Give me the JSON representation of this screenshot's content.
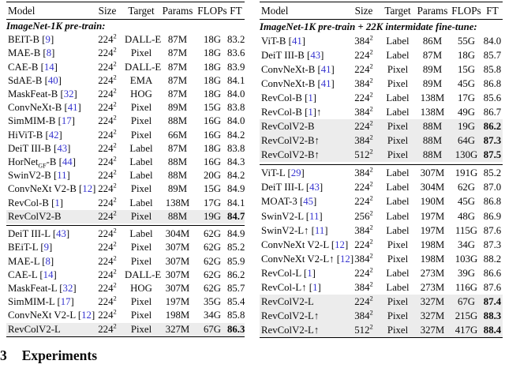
{
  "colors": {
    "citation_blue": "#3533cf",
    "highlight_gray": "#ececec",
    "text": "#0a0a0a"
  },
  "heading": {
    "number": "3",
    "title": "Experiments"
  },
  "tables": {
    "left": {
      "columns": [
        "Model",
        "Size",
        "Target",
        "Params",
        "FLOPs",
        "FT"
      ],
      "section": "ImageNet-1K pre-train:",
      "blocks": [
        {
          "rows": [
            {
              "m": "BEIT-B",
              "c": "9",
              "size": "224",
              "sup": "2",
              "target": "DALL-E",
              "params": "87M",
              "flops": "18G",
              "ft": "83.2"
            },
            {
              "m": "MAE-B",
              "c": "8",
              "size": "224",
              "sup": "2",
              "target": "Pixel",
              "params": "87M",
              "flops": "18G",
              "ft": "83.6"
            },
            {
              "m": "CAE-B",
              "c": "14",
              "size": "224",
              "sup": "2",
              "target": "DALL-E",
              "params": "87M",
              "flops": "18G",
              "ft": "83.9"
            },
            {
              "m": "SdAE-B",
              "c": "40",
              "size": "224",
              "sup": "2",
              "target": "EMA",
              "params": "87M",
              "flops": "18G",
              "ft": "84.1"
            },
            {
              "m": "MaskFeat-B",
              "c": "32",
              "size": "224",
              "sup": "2",
              "target": "HOG",
              "params": "87M",
              "flops": "18G",
              "ft": "84.0"
            },
            {
              "m": "ConvNeXt-B",
              "c": "41",
              "size": "224",
              "sup": "2",
              "target": "Pixel",
              "params": "89M",
              "flops": "15G",
              "ft": "83.8"
            },
            {
              "m": "SimMIM-B",
              "c": "17",
              "size": "224",
              "sup": "2",
              "target": "Pixel",
              "params": "88M",
              "flops": "16G",
              "ft": "84.0"
            },
            {
              "m": "HiViT-B",
              "c": "42",
              "size": "224",
              "sup": "2",
              "target": "Pixel",
              "params": "66M",
              "flops": "16G",
              "ft": "84.2"
            },
            {
              "m": "DeiT III-B",
              "c": "43",
              "size": "224",
              "sup": "2",
              "target": "Label",
              "params": "87M",
              "flops": "18G",
              "ft": "83.8"
            },
            {
              "m": "HorNet",
              "sub": "GF",
              "m2": "-B",
              "c": "44",
              "size": "224",
              "sup": "2",
              "target": "Label",
              "params": "88M",
              "flops": "16G",
              "ft": "84.3"
            },
            {
              "m": "SwinV2-B",
              "c": "11",
              "size": "224",
              "sup": "2",
              "target": "Label",
              "params": "88M",
              "flops": "20G",
              "ft": "84.2"
            },
            {
              "m": "ConvNeXt V2-B",
              "c": "12",
              "size": "224",
              "sup": "2",
              "target": "Pixel",
              "params": "89M",
              "flops": "15G",
              "ft": "84.9"
            },
            {
              "m": "RevCol-B",
              "c": "1",
              "size": "224",
              "sup": "2",
              "target": "Label",
              "params": "138M",
              "flops": "17G",
              "ft": "84.1"
            },
            {
              "m": "RevColV2-B",
              "size": "224",
              "sup": "2",
              "target": "Pixel",
              "params": "88M",
              "flops": "19G",
              "ft": "84.7",
              "hl": true,
              "bold": true
            }
          ]
        },
        {
          "rows": [
            {
              "m": "DeiT III-L",
              "c": "43",
              "size": "224",
              "sup": "2",
              "target": "Label",
              "params": "304M",
              "flops": "62G",
              "ft": "84.9"
            },
            {
              "m": "BEiT-L",
              "c": "9",
              "size": "224",
              "sup": "2",
              "target": "Pixel",
              "params": "307M",
              "flops": "62G",
              "ft": "85.2"
            },
            {
              "m": "MAE-L",
              "c": "8",
              "size": "224",
              "sup": "2",
              "target": "Pixel",
              "params": "307M",
              "flops": "62G",
              "ft": "85.9"
            },
            {
              "m": "CAE-L",
              "c": "14",
              "size": "224",
              "sup": "2",
              "target": "DALL-E",
              "params": "307M",
              "flops": "62G",
              "ft": "86.2"
            },
            {
              "m": "MaskFeat-L",
              "c": "32",
              "size": "224",
              "sup": "2",
              "target": "HOG",
              "params": "307M",
              "flops": "62G",
              "ft": "85.7"
            },
            {
              "m": "SimMIM-L",
              "c": "17",
              "size": "224",
              "sup": "2",
              "target": "Pixel",
              "params": "197M",
              "flops": "35G",
              "ft": "85.4"
            },
            {
              "m": "ConvNeXt V2-L",
              "c": "12",
              "size": "224",
              "sup": "2",
              "target": "Pixel",
              "params": "198M",
              "flops": "34G",
              "ft": "85.8"
            },
            {
              "m": "RevColV2-L",
              "size": "224",
              "sup": "2",
              "target": "Pixel",
              "params": "327M",
              "flops": "67G",
              "ft": "86.3",
              "hl": true,
              "bold": true
            }
          ]
        }
      ]
    },
    "right": {
      "columns": [
        "Model",
        "Size",
        "Target",
        "Params",
        "FLOPs",
        "FT"
      ],
      "section": "ImageNet-1K pre-train + 22K intermidate fine-tune:",
      "blocks": [
        {
          "rows": [
            {
              "m": "ViT-B",
              "c": "41",
              "size": "384",
              "sup": "2",
              "target": "Label",
              "params": "86M",
              "flops": "55G",
              "ft": "84.0"
            },
            {
              "m": "DeiT III-B",
              "c": "43",
              "size": "224",
              "sup": "2",
              "target": "Label",
              "params": "87M",
              "flops": "18G",
              "ft": "85.7"
            },
            {
              "m": "ConvNeXt-B",
              "c": "41",
              "size": "224",
              "sup": "2",
              "target": "Pixel",
              "params": "89M",
              "flops": "15G",
              "ft": "85.8"
            },
            {
              "m": "ConvNeXt-B",
              "c": "41",
              "size": "384",
              "sup": "2",
              "target": "Pixel",
              "params": "89M",
              "flops": "45G",
              "ft": "86.8"
            },
            {
              "m": "RevCol-B",
              "c": "1",
              "size": "224",
              "sup": "2",
              "target": "Label",
              "params": "138M",
              "flops": "17G",
              "ft": "85.6"
            },
            {
              "m": "RevCol-B",
              "c": "1",
              "post": "↑",
              "size": "384",
              "sup": "2",
              "target": "Label",
              "params": "138M",
              "flops": "49G",
              "ft": "86.7"
            },
            {
              "m": "RevColV2-B",
              "size": "224",
              "sup": "2",
              "target": "Pixel",
              "params": "88M",
              "flops": "19G",
              "ft": "86.2",
              "hl": true,
              "bold": true
            },
            {
              "m": "RevColV2-B↑",
              "size": "384",
              "sup": "2",
              "target": "Pixel",
              "params": "88M",
              "flops": "64G",
              "ft": "87.3",
              "hl": true,
              "bold": true
            },
            {
              "m": "RevColV2-B↑",
              "size": "512",
              "sup": "2",
              "target": "Pixel",
              "params": "88M",
              "flops": "130G",
              "ft": "87.5",
              "hl": true,
              "bold": true
            }
          ]
        },
        {
          "rows": [
            {
              "m": "ViT-L",
              "c": "29",
              "size": "384",
              "sup": "2",
              "target": "Label",
              "params": "307M",
              "flops": "191G",
              "ft": "85.2"
            },
            {
              "m": "DeiT III-L",
              "c": "43",
              "size": "224",
              "sup": "2",
              "target": "Label",
              "params": "304M",
              "flops": "62G",
              "ft": "87.0"
            },
            {
              "m": "MOAT-3",
              "c": "45",
              "size": "224",
              "sup": "2",
              "target": "Label",
              "params": "190M",
              "flops": "45G",
              "ft": "86.8"
            },
            {
              "m": "SwinV2-L",
              "c": "11",
              "size": "256",
              "sup": "2",
              "target": "Label",
              "params": "197M",
              "flops": "48G",
              "ft": "86.9"
            },
            {
              "m": "SwinV2-L↑",
              "c": "11",
              "size": "384",
              "sup": "2",
              "target": "Label",
              "params": "197M",
              "flops": "115G",
              "ft": "87.6"
            },
            {
              "m": "ConvNeXt V2-L",
              "c": "12",
              "size": "224",
              "sup": "2",
              "target": "Pixel",
              "params": "198M",
              "flops": "34G",
              "ft": "87.3"
            },
            {
              "m": "ConvNeXt V2-L↑",
              "c": "12",
              "size": "384",
              "sup": "2",
              "target": "Pixel",
              "params": "198M",
              "flops": "103G",
              "ft": "88.2"
            },
            {
              "m": "RevCol-L",
              "c": "1",
              "size": "224",
              "sup": "2",
              "target": "Label",
              "params": "273M",
              "flops": "39G",
              "ft": "86.6"
            },
            {
              "m": "RevCol-L↑",
              "c": "1",
              "size": "384",
              "sup": "2",
              "target": "Label",
              "params": "273M",
              "flops": "116G",
              "ft": "87.6"
            },
            {
              "m": "RevColV2-L",
              "size": "224",
              "sup": "2",
              "target": "Pixel",
              "params": "327M",
              "flops": "67G",
              "ft": "87.4",
              "hl": true,
              "bold": true
            },
            {
              "m": "RevColV2-L↑",
              "size": "384",
              "sup": "2",
              "target": "Pixel",
              "params": "327M",
              "flops": "215G",
              "ft": "88.3",
              "hl": true,
              "bold": true
            },
            {
              "m": "RevColV2-L↑",
              "size": "512",
              "sup": "2",
              "target": "Pixel",
              "params": "327M",
              "flops": "417G",
              "ft": "88.4",
              "hl": true,
              "bold": true
            }
          ]
        }
      ]
    }
  }
}
